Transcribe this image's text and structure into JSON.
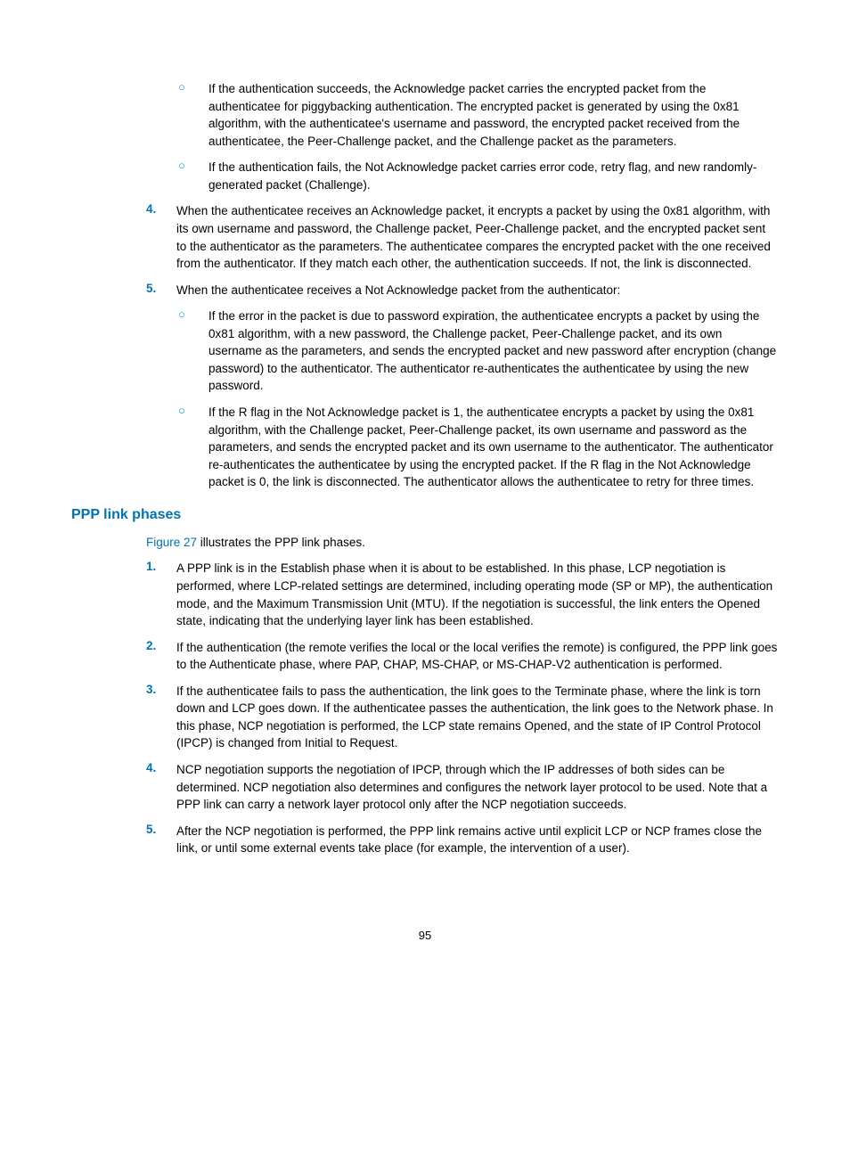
{
  "colors": {
    "accent": "#0073b1",
    "bullet": "#0096d6",
    "text": "#000000",
    "background": "#ffffff"
  },
  "typography": {
    "body_size_pt": 13.5,
    "heading_size_pt": 16,
    "line_height": 1.45,
    "font_family": "Arial"
  },
  "section1": {
    "sub_bullets_a": [
      "If the authentication succeeds, the Acknowledge packet carries the encrypted packet from the authenticatee for piggybacking authentication. The encrypted packet is generated by using the 0x81 algorithm, with the authenticatee's username and password, the encrypted packet received from the authenticatee, the Peer-Challenge packet, and the Challenge packet as the parameters.",
      "If the authentication fails, the Not Acknowledge packet carries error code, retry flag, and new randomly-generated packet (Challenge)."
    ],
    "item4": "When the authenticatee receives an Acknowledge packet, it encrypts a packet by using the 0x81 algorithm, with its own username and password, the Challenge packet, Peer-Challenge packet, and the encrypted packet sent to the authenticator as the parameters. The authenticatee compares the encrypted packet with the one received from the authenticator. If they match each other, the authentication succeeds. If not, the link is disconnected.",
    "item5": "When the authenticatee receives a Not Acknowledge packet from the authenticator:",
    "sub_bullets_b": [
      "If the error in the packet is due to password expiration, the authenticatee encrypts a packet by using the 0x81 algorithm, with a new password, the Challenge packet, Peer-Challenge packet, and its own username as the parameters, and sends the encrypted packet and new password after encryption (change password) to the authenticator. The authenticator re-authenticates the authenticatee by using the new password.",
      "If the R flag in the Not Acknowledge packet is 1, the authenticatee encrypts a packet by using the 0x81 algorithm, with the Challenge packet, Peer-Challenge packet, its own username and password as the parameters, and sends the encrypted packet and its own username to the authenticator. The authenticator re-authenticates the authenticatee by using the encrypted packet. If the R flag in the Not Acknowledge packet is 0, the link is disconnected. The authenticator allows the authenticatee to retry for three times."
    ]
  },
  "heading": "PPP link phases",
  "intro_figure": "Figure 27",
  "intro_rest": " illustrates the PPP link phases.",
  "phases": {
    "item1": "A PPP link is in the Establish phase when it is about to be established. In this phase, LCP negotiation is performed, where LCP-related settings are determined, including operating mode (SP or MP), the authentication mode, and the Maximum Transmission Unit (MTU). If the negotiation is successful, the link enters the Opened state, indicating that the underlying layer link has been established.",
    "item2": "If the authentication (the remote verifies the local or the local verifies the remote) is configured, the PPP link goes to the Authenticate phase, where PAP, CHAP, MS-CHAP, or MS-CHAP-V2 authentication is performed.",
    "item3": "If the authenticatee fails to pass the authentication, the link goes to the Terminate phase, where the link is torn down and LCP goes down. If the authenticatee passes the authentication, the link goes to the Network phase. In this phase, NCP negotiation is performed, the LCP state remains Opened, and the state of IP Control Protocol (IPCP) is changed from Initial to Request.",
    "item4": "NCP negotiation supports the negotiation of IPCP, through which the IP addresses of both sides can be determined. NCP negotiation also determines and configures the network layer protocol to be used. Note that a PPP link can carry a network layer protocol only after the NCP negotiation succeeds.",
    "item5": "After the NCP negotiation is performed, the PPP link remains active until explicit LCP or NCP frames close the link, or until some external events take place (for example, the intervention of a user)."
  },
  "markers": {
    "circle": "○",
    "n4": "4.",
    "n5": "5.",
    "p1": "1.",
    "p2": "2.",
    "p3": "3.",
    "p4": "4.",
    "p5": "5."
  },
  "page_number": "95"
}
